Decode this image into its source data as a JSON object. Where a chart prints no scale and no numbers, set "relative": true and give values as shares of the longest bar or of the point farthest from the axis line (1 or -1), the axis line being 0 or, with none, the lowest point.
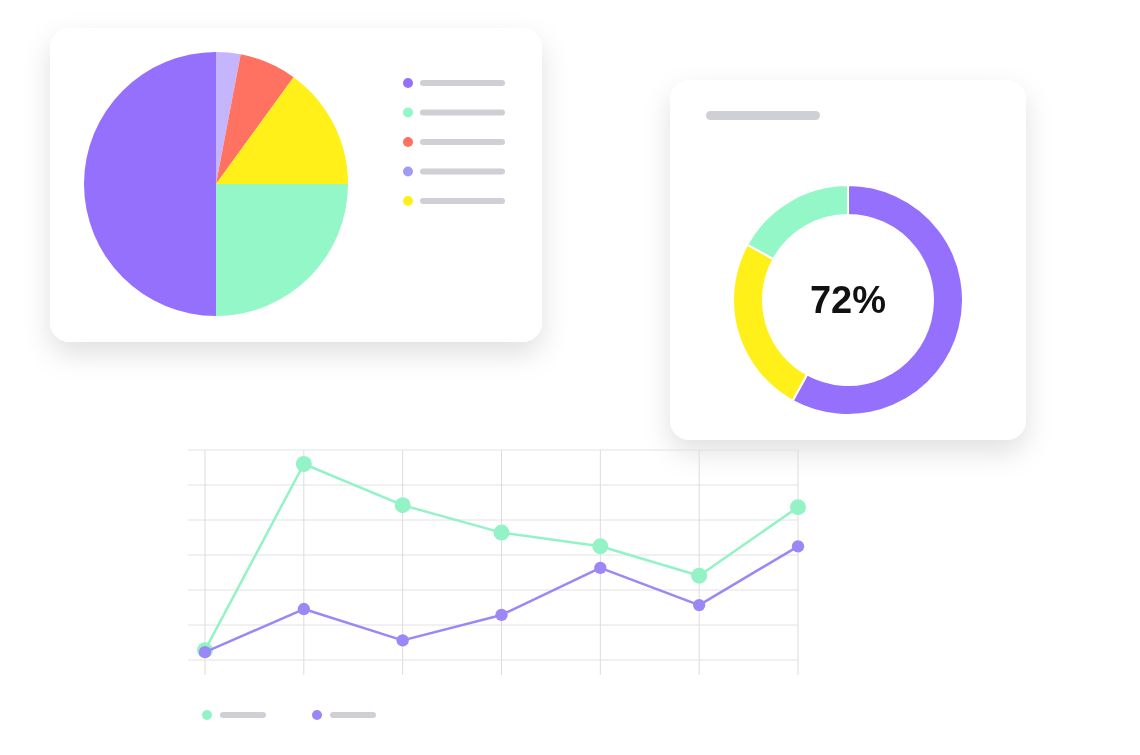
{
  "chart_data": [
    {
      "type": "pie",
      "categories": [
        null,
        null,
        null,
        null,
        null
      ],
      "values": [
        3,
        7,
        15,
        25,
        50
      ],
      "colors": [
        "#c4b5fd",
        "#ff7262",
        "#fff01a",
        "#94f7c8",
        "#9570fd"
      ]
    },
    {
      "type": "donut",
      "categories": [
        null,
        null,
        null
      ],
      "values": [
        58,
        25,
        17
      ],
      "colors": [
        "#9570fd",
        "#fff01a",
        "#94f7c8"
      ],
      "annotations": [
        "72%"
      ]
    },
    {
      "type": "line",
      "categories": [
        null,
        null,
        null,
        null,
        null,
        null,
        null
      ],
      "relative": true,
      "grid": true,
      "marker": "circle",
      "series": [
        {
          "color": "#94f3c6",
          "values": [
            0.05,
            1,
            0.79,
            0.65,
            0.58,
            0.43,
            0.78
          ]
        },
        {
          "color": "#9c87f7",
          "values": [
            0.04,
            0.26,
            0.1,
            0.23,
            0.47,
            0.28,
            0.58
          ]
        }
      ]
    }
  ]
}
